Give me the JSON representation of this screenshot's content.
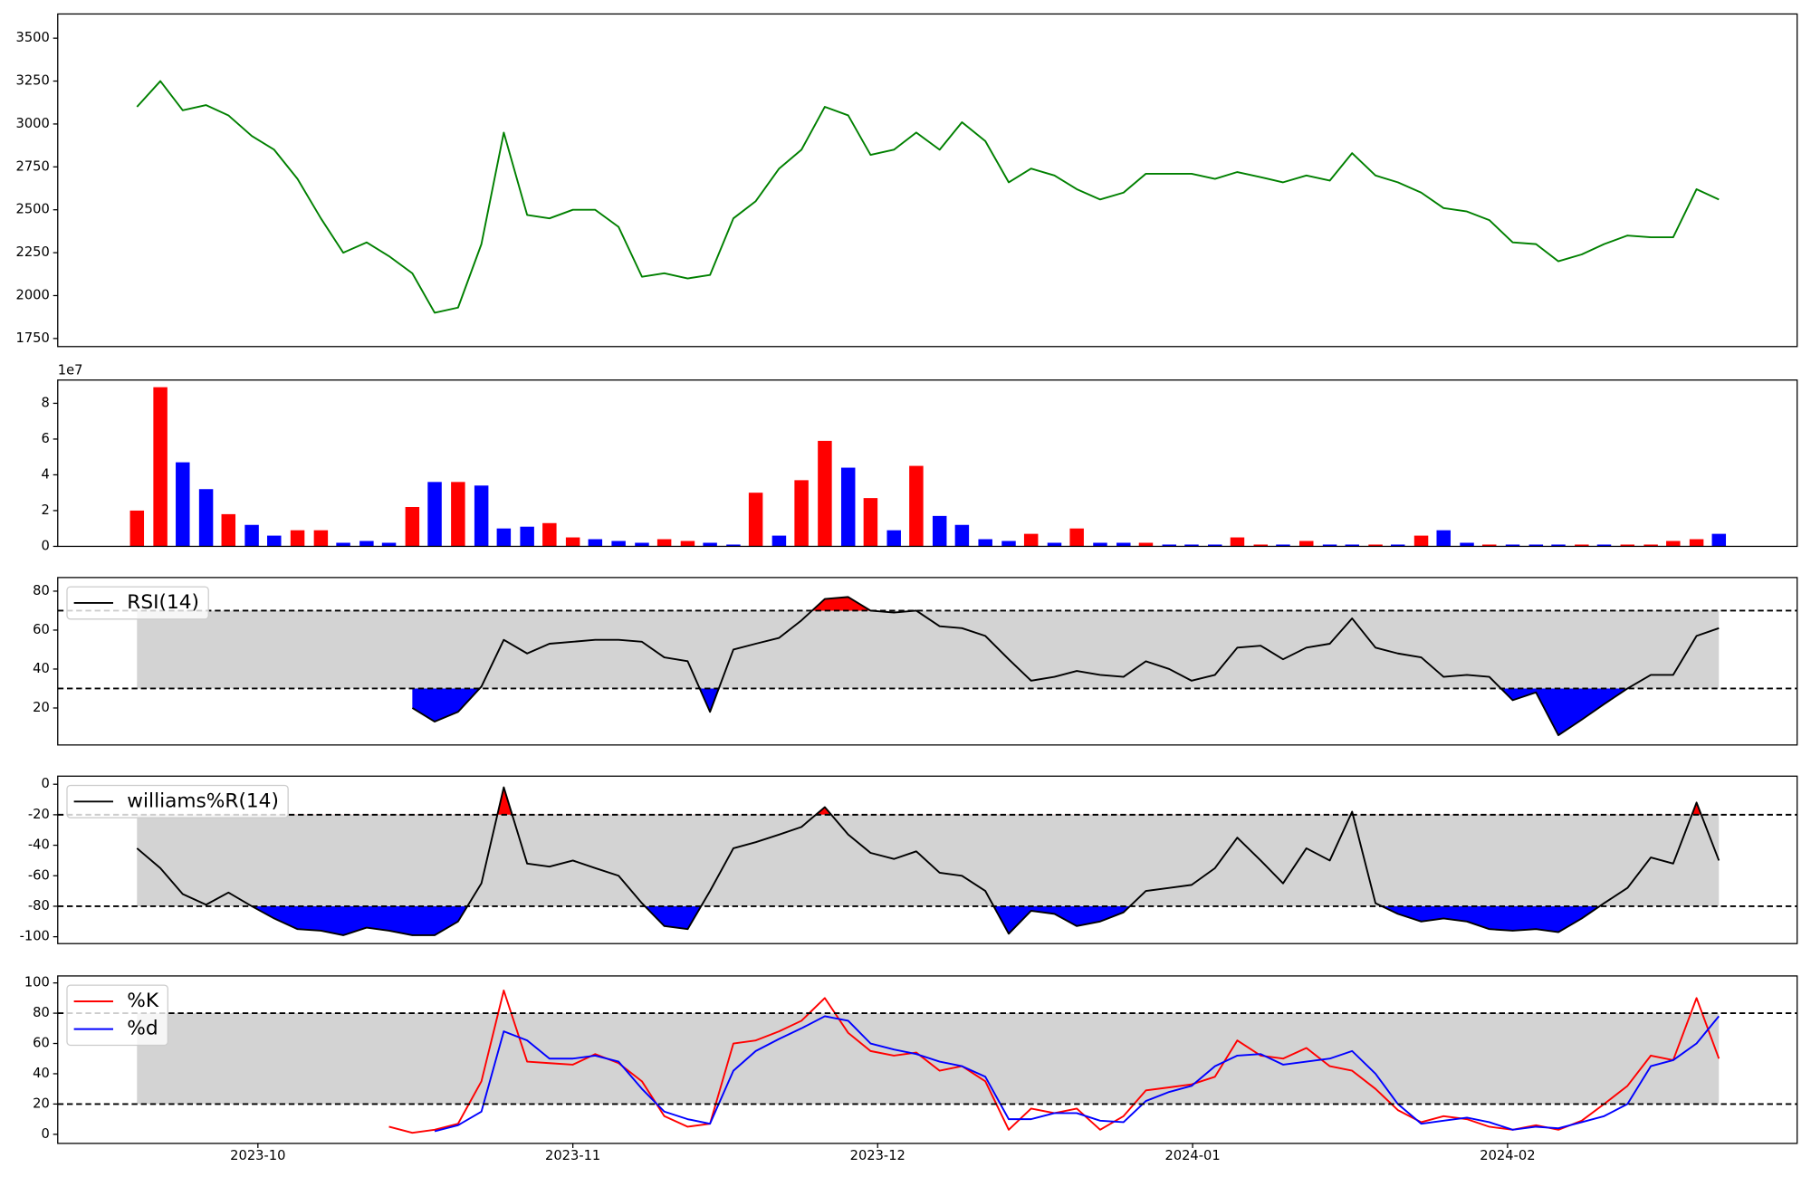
{
  "chart_data": {
    "type": "panels",
    "x": [
      -11.9,
      -9.6,
      -7.4,
      -5.1,
      -2.9,
      -0.6,
      1.6,
      3.9,
      6.2,
      8.4,
      10.7,
      12.9,
      15.2,
      17.4,
      19.7,
      22.0,
      24.2,
      26.5,
      28.7,
      31.0,
      33.2,
      35.5,
      37.8,
      40.0,
      42.3,
      44.5,
      46.8,
      49.0,
      51.3,
      53.5,
      55.8,
      58.1,
      60.3,
      62.6,
      64.8,
      67.1,
      69.3,
      71.6,
      73.9,
      76.1,
      78.4,
      80.6,
      82.9,
      85.2,
      87.4,
      89.7,
      91.9,
      94.2,
      96.4,
      98.7,
      100.9,
      103.2,
      105.5,
      107.7,
      110.0,
      112.2,
      114.5,
      116.7,
      119.0,
      121.2,
      123.5,
      125.8,
      128.0,
      130.3,
      132.5,
      134.8,
      137.1,
      139.3,
      141.6,
      143.8
    ],
    "xlim": [
      -19.7,
      151.5
    ],
    "xticks": [
      {
        "value": 0,
        "label": "2023-10"
      },
      {
        "value": 31,
        "label": "2023-11"
      },
      {
        "value": 61,
        "label": "2023-12"
      },
      {
        "value": 92,
        "label": "2024-01"
      },
      {
        "value": 123,
        "label": "2024-02"
      }
    ],
    "panels": [
      {
        "type": "line",
        "ylim": [
          1703,
          3641
        ],
        "yticks": [
          1750,
          2000,
          2250,
          2500,
          2750,
          3000,
          3250,
          3500
        ],
        "series": [
          {
            "color": "green",
            "values": [
              3100,
              3250,
              3080,
              3110,
              3050,
              2930,
              2850,
              2680,
              2450,
              2250,
              2310,
              2230,
              2130,
              1900,
              1930,
              2300,
              2950,
              2470,
              2450,
              2500,
              2500,
              2400,
              2110,
              2130,
              2100,
              2120,
              2450,
              2550,
              2740,
              2850,
              3100,
              3050,
              2820,
              2850,
              2950,
              2850,
              3010,
              2900,
              2660,
              2740,
              2700,
              2620,
              2560,
              2600,
              2710,
              2710,
              2710,
              2680,
              2720,
              2690,
              2660,
              2700,
              2670,
              2830,
              2700,
              2660,
              2600,
              2510,
              2490,
              2440,
              2310,
              2300,
              2200,
              2240,
              2300,
              2350,
              2340,
              2340,
              2620,
              2560
            ]
          }
        ]
      },
      {
        "type": "bar",
        "offset_label": "1e7",
        "ylim": [
          0,
          9.3
        ],
        "yticks": [
          0,
          2,
          4,
          6,
          8
        ],
        "values": [
          2.0,
          8.9,
          4.7,
          3.2,
          1.8,
          1.2,
          0.6,
          0.9,
          0.9,
          0.2,
          0.3,
          0.2,
          2.2,
          3.6,
          3.6,
          3.4,
          1.0,
          1.1,
          1.3,
          0.5,
          0.4,
          0.3,
          0.2,
          0.4,
          0.3,
          0.2,
          0.1,
          3.0,
          0.6,
          3.7,
          5.9,
          4.4,
          2.7,
          0.9,
          4.5,
          1.7,
          1.2,
          0.4,
          0.3,
          0.7,
          0.2,
          1.0,
          0.2,
          0.2,
          0.2,
          0.1,
          0.1,
          0.1,
          0.5,
          0.1,
          0.1,
          0.3,
          0.1,
          0.1,
          0.1,
          0.1,
          0.6,
          0.9,
          0.2,
          0.1,
          0.1,
          0.1,
          0.1,
          0.1,
          0.1,
          0.1,
          0.1,
          0.3,
          0.4,
          0.7
        ],
        "colors": [
          "red",
          "red",
          "blue",
          "blue",
          "red",
          "blue",
          "blue",
          "red",
          "red",
          "blue",
          "blue",
          "blue",
          "red",
          "blue",
          "red",
          "blue",
          "blue",
          "blue",
          "red",
          "red",
          "blue",
          "blue",
          "blue",
          "red",
          "red",
          "blue",
          "blue",
          "red",
          "blue",
          "red",
          "red",
          "blue",
          "red",
          "blue",
          "red",
          "blue",
          "blue",
          "blue",
          "blue",
          "red",
          "blue",
          "red",
          "blue",
          "blue",
          "red",
          "blue",
          "blue",
          "blue",
          "red",
          "red",
          "blue",
          "red",
          "blue",
          "blue",
          "red",
          "blue",
          "red",
          "blue",
          "blue",
          "red",
          "blue",
          "blue",
          "blue",
          "red",
          "blue",
          "red",
          "red",
          "red",
          "red",
          "blue"
        ]
      },
      {
        "type": "line",
        "ylim": [
          1,
          87
        ],
        "yticks": [
          20,
          40,
          60,
          80
        ],
        "upper": 70,
        "lower": 30,
        "band_color": "lightgray",
        "above_color": "red",
        "below_color": "blue",
        "series": [
          {
            "name": "RSI(14)",
            "color": "black",
            "values": [
              null,
              null,
              null,
              null,
              null,
              null,
              null,
              null,
              null,
              null,
              null,
              null,
              20,
              13,
              18,
              31,
              55,
              48,
              53,
              54,
              55,
              55,
              54,
              46,
              44,
              18,
              50,
              53,
              56,
              65,
              76,
              77,
              70,
              69,
              70,
              62,
              61,
              57,
              45,
              34,
              36,
              39,
              37,
              36,
              44,
              40,
              34,
              37,
              51,
              52,
              45,
              51,
              53,
              66,
              51,
              48,
              46,
              36,
              37,
              36,
              24,
              28,
              6,
              14,
              22,
              30,
              37,
              37,
              57,
              61
            ]
          }
        ]
      },
      {
        "type": "line",
        "ylim": [
          -104.5,
          5.3
        ],
        "yticks": [
          -100,
          -80,
          -60,
          -40,
          -20,
          0
        ],
        "upper": -20,
        "lower": -80,
        "band_color": "lightgray",
        "above_color": "red",
        "below_color": "blue",
        "series": [
          {
            "name": "williams%R(14)",
            "color": "black",
            "values": [
              -42,
              -55,
              -72,
              -79,
              -71,
              -80,
              -88,
              -95,
              -96,
              -99,
              -94,
              -96,
              -99,
              -99,
              -90,
              -65,
              -2,
              -52,
              -54,
              -50,
              -55,
              -60,
              -78,
              -93,
              -95,
              -70,
              -42,
              -38,
              -33,
              -28,
              -15,
              -33,
              -45,
              -49,
              -44,
              -58,
              -60,
              -70,
              -98,
              -83,
              -85,
              -93,
              -90,
              -84,
              -70,
              -68,
              -66,
              -55,
              -35,
              -50,
              -65,
              -42,
              -50,
              -18,
              -78,
              -85,
              -90,
              -88,
              -90,
              -95,
              -96,
              -95,
              -97,
              -88,
              -78,
              -68,
              -48,
              -52,
              -12,
              -50
            ]
          }
        ]
      },
      {
        "type": "line",
        "ylim": [
          -6,
          104.6
        ],
        "yticks": [
          0,
          20,
          40,
          60,
          80,
          100
        ],
        "upper": 80,
        "lower": 20,
        "band_color": "lightgray",
        "series": [
          {
            "name": "%K",
            "color": "red",
            "values": [
              null,
              null,
              null,
              null,
              null,
              null,
              null,
              null,
              null,
              null,
              null,
              5,
              1,
              3,
              7,
              35,
              95,
              48,
              47,
              46,
              53,
              47,
              35,
              12,
              5,
              7,
              60,
              62,
              68,
              75,
              90,
              67,
              55,
              52,
              54,
              42,
              45,
              35,
              3,
              17,
              14,
              17,
              3,
              12,
              29,
              31,
              33,
              38,
              62,
              52,
              50,
              57,
              45,
              42,
              30,
              16,
              8,
              12,
              10,
              5,
              3,
              6,
              3,
              9,
              20,
              32,
              52,
              49,
              90,
              50
            ]
          },
          {
            "name": "%d",
            "color": "blue",
            "values": [
              null,
              null,
              null,
              null,
              null,
              null,
              null,
              null,
              null,
              null,
              null,
              null,
              null,
              2,
              6,
              15,
              68,
              62,
              50,
              50,
              52,
              48,
              30,
              15,
              10,
              7,
              42,
              55,
              63,
              70,
              78,
              75,
              60,
              56,
              53,
              48,
              45,
              38,
              10,
              10,
              14,
              14,
              9,
              8,
              22,
              28,
              32,
              45,
              52,
              53,
              46,
              48,
              50,
              55,
              40,
              20,
              7,
              9,
              11,
              8,
              3,
              5,
              4,
              8,
              12,
              20,
              45,
              49,
              60,
              78
            ]
          }
        ]
      }
    ]
  }
}
